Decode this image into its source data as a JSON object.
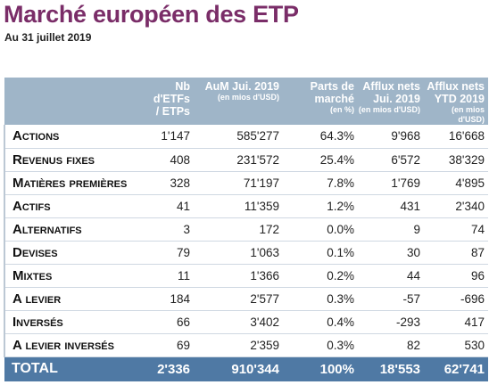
{
  "title": "Marché européen des ETP",
  "subtitle": "Au 31 juillet 2019",
  "headers": [
    {
      "main": "Nb d'ETFs / ETPs",
      "note": ""
    },
    {
      "main": "AuM Jui. 2019",
      "note": "(en mios d'USD)"
    },
    {
      "main": "Parts de marché",
      "note": "(en %)"
    },
    {
      "main": "Afflux nets Jui. 2019",
      "note": "(en mios d'USD)"
    },
    {
      "main": "Afflux nets YTD 2019",
      "note": "(en mios d'USD)"
    }
  ],
  "rows": [
    {
      "label": "Actions",
      "nb": "1'147",
      "aum": "585'277",
      "parts": "64.3%",
      "flow_jul": "9'968",
      "flow_ytd": "16'668"
    },
    {
      "label": "Revenus fixes",
      "nb": "408",
      "aum": "231'572",
      "parts": "25.4%",
      "flow_jul": "6'572",
      "flow_ytd": "38'329"
    },
    {
      "label": "Matières premières",
      "nb": "328",
      "aum": "71'197",
      "parts": "7.8%",
      "flow_jul": "1'769",
      "flow_ytd": "4'895"
    },
    {
      "label": "Actifs",
      "nb": "41",
      "aum": "11'359",
      "parts": "1.2%",
      "flow_jul": "431",
      "flow_ytd": "2'340"
    },
    {
      "label": "Alternatifs",
      "nb": "3",
      "aum": "172",
      "parts": "0.0%",
      "flow_jul": "9",
      "flow_ytd": "74"
    },
    {
      "label": "Devises",
      "nb": "79",
      "aum": "1'063",
      "parts": "0.1%",
      "flow_jul": "30",
      "flow_ytd": "87"
    },
    {
      "label": "Mixtes",
      "nb": "11",
      "aum": "1'366",
      "parts": "0.2%",
      "flow_jul": "44",
      "flow_ytd": "96"
    },
    {
      "label": "A levier",
      "nb": "184",
      "aum": "2'577",
      "parts": "0.3%",
      "flow_jul": "-57",
      "flow_ytd": "-696"
    },
    {
      "label": "Inversés",
      "nb": "66",
      "aum": "3'402",
      "parts": "0.4%",
      "flow_jul": "-293",
      "flow_ytd": "417"
    },
    {
      "label": "A levier inversés",
      "nb": "69",
      "aum": "2'359",
      "parts": "0.3%",
      "flow_jul": "82",
      "flow_ytd": "530"
    }
  ],
  "total": {
    "label": "TOTAL",
    "nb": "2'336",
    "aum": "910'344",
    "parts": "100%",
    "flow_jul": "18'553",
    "flow_ytd": "62'741"
  },
  "colors": {
    "title": "#7a2d68",
    "header_bg": "#9fb5c8",
    "total_bg": "#4f79a4"
  }
}
